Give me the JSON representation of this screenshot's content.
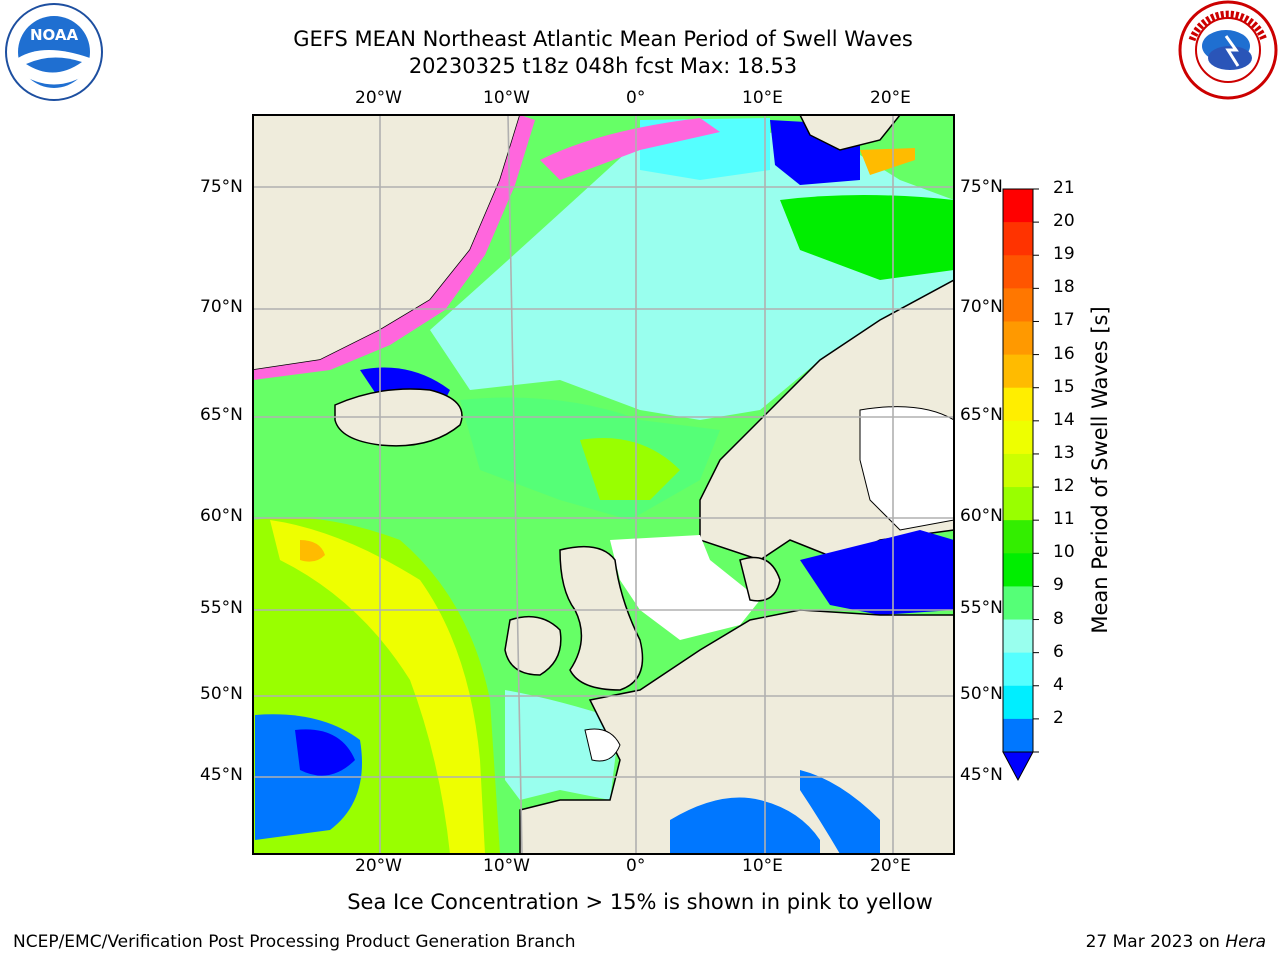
{
  "header": {
    "title_line1": "GEFS MEAN Northeast Atlantic Mean Period of Swell Waves",
    "title_line2": "20230325 t18z 048h fcst   Max: 18.53"
  },
  "logos": {
    "left": "noaa-logo",
    "right": "nws-logo"
  },
  "map": {
    "lon_ticks_top": [
      "20°W",
      "10°W",
      "0°",
      "10°E",
      "20°E"
    ],
    "lon_ticks_bottom": [
      "20°W",
      "10°W",
      "0°",
      "10°E",
      "20°E"
    ],
    "lat_ticks_left": [
      "75°N",
      "70°N",
      "65°N",
      "60°N",
      "55°N",
      "50°N",
      "45°N"
    ],
    "lat_ticks_right": [
      "75°N",
      "70°N",
      "65°N",
      "60°N",
      "55°N",
      "50°N",
      "45°N"
    ],
    "land_color": "#efecdc",
    "ocean_base_color": "#66ff66"
  },
  "colorbar": {
    "label": "Mean Period of Swell Waves [s]",
    "ticks": [
      "21",
      "20",
      "19",
      "18",
      "17",
      "16",
      "15",
      "14",
      "13",
      "12",
      "11",
      "10",
      "9",
      "8",
      "6",
      "4",
      "2"
    ],
    "colors": [
      "#ff0000",
      "#ff3300",
      "#ff5500",
      "#ff7700",
      "#ff9900",
      "#ffbb00",
      "#ffee00",
      "#eeff00",
      "#ccff00",
      "#99ff00",
      "#33ee00",
      "#00ee00",
      "#55ff77",
      "#99ffee",
      "#55ffff",
      "#00eeff",
      "#0077ff"
    ],
    "extend_color": "#0000ff"
  },
  "footer": {
    "note": "Sea Ice Concentration > 15% is shown in pink to yellow",
    "left": "NCEP/EMC/Verification Post Processing Product Generation Branch",
    "right_date": "27 Mar 2023 on ",
    "right_host": "Hera"
  }
}
